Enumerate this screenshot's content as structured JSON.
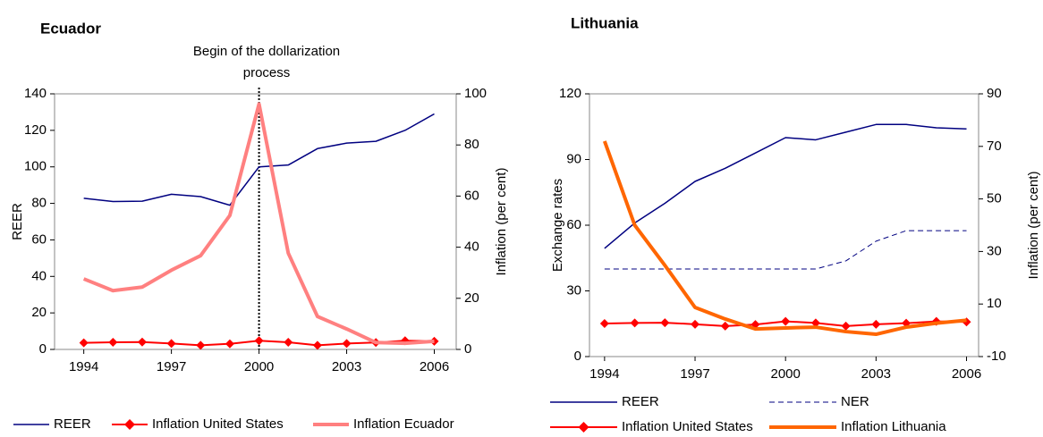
{
  "chart_data": [
    {
      "type": "line",
      "title": "Ecuador",
      "annotation": [
        "Begin of the dollarization",
        "process"
      ],
      "vline": 2000,
      "ylabel": "REER",
      "y2label": "Inflation (per cent)",
      "x": [
        1994,
        1995,
        1996,
        1997,
        1998,
        1999,
        2000,
        2001,
        2002,
        2003,
        2004,
        2005,
        2006
      ],
      "xlim": [
        1993,
        2006.75
      ],
      "xticks": [
        1994,
        1997,
        2000,
        2003,
        2006
      ],
      "ylim": [
        0,
        140
      ],
      "yticks": [
        0,
        20,
        40,
        60,
        80,
        100,
        120,
        140
      ],
      "y2lim": [
        0,
        100
      ],
      "y2ticks": [
        0,
        20,
        40,
        60,
        80,
        100
      ],
      "series": [
        {
          "name": "REER",
          "color": "#000080",
          "linewidth": 1.5,
          "values": [
            82.8,
            81,
            81.2,
            85,
            83.7,
            79,
            100,
            101,
            110,
            113,
            114,
            120,
            129
          ]
        },
        {
          "name": "Inflation United States",
          "color": "#ff0000",
          "linewidth": 2,
          "marker": "diamond",
          "axis": "y2",
          "values": [
            2.6,
            2.8,
            2.9,
            2.3,
            1.6,
            2.2,
            3.4,
            2.8,
            1.6,
            2.3,
            2.7,
            3.4,
            3.2
          ]
        },
        {
          "name": "Inflation Ecuador",
          "color": "#ff8080",
          "linewidth": 4,
          "axis": "y2",
          "values": [
            27.6,
            23,
            24.4,
            31,
            36.7,
            52.4,
            96,
            37.7,
            12.9,
            8,
            2.7,
            2.4,
            3.2
          ]
        }
      ]
    },
    {
      "type": "line",
      "title": "Lithuania",
      "ylabel": "Exchange rates",
      "y2label": "Inflation (per cent)",
      "x": [
        1994,
        1995,
        1996,
        1997,
        1998,
        1999,
        2000,
        2001,
        2002,
        2003,
        2004,
        2005,
        2006
      ],
      "xlim": [
        1993.5,
        2006.4
      ],
      "xticks": [
        1994,
        1997,
        2000,
        2003,
        2006
      ],
      "ylim": [
        0,
        120
      ],
      "yticks": [
        0,
        30,
        60,
        90,
        120
      ],
      "y2lim": [
        -10,
        90
      ],
      "y2ticks": [
        -10,
        10,
        30,
        50,
        70,
        90
      ],
      "series": [
        {
          "name": "REER",
          "color": "#000080",
          "linewidth": 1.5,
          "values": [
            49.4,
            61,
            70,
            80,
            86,
            93,
            100,
            99,
            102.5,
            106,
            106,
            104.5,
            104
          ]
        },
        {
          "name": "NER",
          "color": "#000080",
          "linewidth": 1,
          "dash": true,
          "values": [
            40,
            40,
            40,
            40,
            40,
            40,
            40,
            40,
            43.7,
            52.7,
            57.5,
            57.5,
            57.5
          ]
        },
        {
          "name": "Inflation United States",
          "color": "#ff0000",
          "linewidth": 2,
          "marker": "diamond",
          "axis": "y2",
          "values": [
            2.6,
            2.8,
            2.9,
            2.3,
            1.6,
            2.2,
            3.4,
            2.8,
            1.6,
            2.3,
            2.7,
            3.4,
            3.2
          ]
        },
        {
          "name": "Inflation Lithuania",
          "color": "#ff6600",
          "linewidth": 4,
          "axis": "y2",
          "values": [
            72,
            40,
            24.7,
            8.7,
            4.3,
            0.5,
            0.9,
            1.2,
            -0.5,
            -1.5,
            1.2,
            2.7,
            3.8
          ]
        }
      ]
    }
  ]
}
